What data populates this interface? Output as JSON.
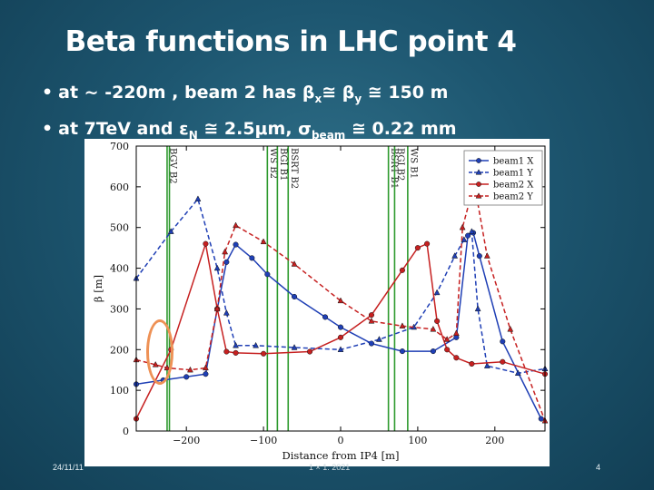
{
  "slide": {
    "title": "Beta functions in LHC point 4",
    "bullets": [
      {
        "prefix": "at  ~  -220m , beam 2 has β",
        "sub1": "x",
        "mid": "≅ β",
        "sub2": "y",
        "suffix": "≅ 150 m"
      },
      {
        "prefix": "at 7TeV and ε",
        "sub1": "N",
        "mid": "≅ 2.5μm, σ",
        "sub2": "beam",
        "suffix": "≅ 0.22 mm"
      }
    ],
    "footer": {
      "date": "24/11/11",
      "center": "1 × 1. 2021",
      "page": "4"
    },
    "highlight_color": "#ee9155"
  },
  "chart_data": {
    "type": "line",
    "xlabel": "Distance from IP4 [m]",
    "ylabel": "β [m]",
    "xlim": [
      -265,
      265
    ],
    "ylim": [
      0,
      700
    ],
    "xticks": [
      -200,
      -100,
      0,
      100,
      200
    ],
    "yticks": [
      0,
      100,
      200,
      300,
      400,
      500,
      600,
      700
    ],
    "grid": false,
    "legend_position": "top-right",
    "vlines": [
      {
        "x": -225,
        "label": "BGV B2"
      },
      {
        "x": -222,
        "label": ""
      },
      {
        "x": -95,
        "label": "WS B2"
      },
      {
        "x": -82,
        "label": "BGI B1"
      },
      {
        "x": -68,
        "label": "BSRT B2"
      },
      {
        "x": 62,
        "label": "BSRT B1"
      },
      {
        "x": 70,
        "label": "BGI B2"
      },
      {
        "x": 87,
        "label": "WS B1"
      }
    ],
    "series": [
      {
        "name": "beam1 X",
        "color": "#1f3fb5",
        "dash": false,
        "marker": "circle",
        "points": [
          [
            -265,
            115
          ],
          [
            -230,
            125
          ],
          [
            -200,
            133
          ],
          [
            -175,
            140
          ],
          [
            -160,
            300
          ],
          [
            -148,
            415
          ],
          [
            -136,
            458
          ],
          [
            -115,
            425
          ],
          [
            -95,
            385
          ],
          [
            -60,
            330
          ],
          [
            -20,
            280
          ],
          [
            0,
            255
          ],
          [
            40,
            215
          ],
          [
            80,
            196
          ],
          [
            120,
            196
          ],
          [
            150,
            230
          ],
          [
            165,
            480
          ],
          [
            172,
            487
          ],
          [
            180,
            430
          ],
          [
            210,
            220
          ],
          [
            260,
            30
          ]
        ]
      },
      {
        "name": "beam1 Y",
        "color": "#1f3fb5",
        "dash": true,
        "marker": "triangle",
        "points": [
          [
            -265,
            375
          ],
          [
            -220,
            490
          ],
          [
            -185,
            570
          ],
          [
            -160,
            400
          ],
          [
            -148,
            290
          ],
          [
            -136,
            210
          ],
          [
            -110,
            210
          ],
          [
            -60,
            205
          ],
          [
            0,
            200
          ],
          [
            50,
            225
          ],
          [
            95,
            255
          ],
          [
            125,
            340
          ],
          [
            148,
            430
          ],
          [
            160,
            470
          ],
          [
            170,
            490
          ],
          [
            178,
            300
          ],
          [
            190,
            160
          ],
          [
            230,
            142
          ],
          [
            265,
            153
          ]
        ]
      },
      {
        "name": "beam2 X",
        "color": "#c62020",
        "dash": false,
        "marker": "circle",
        "points": [
          [
            -265,
            30
          ],
          [
            -220,
            200
          ],
          [
            -175,
            460
          ],
          [
            -160,
            300
          ],
          [
            -148,
            195
          ],
          [
            -136,
            192
          ],
          [
            -100,
            190
          ],
          [
            -40,
            195
          ],
          [
            0,
            230
          ],
          [
            40,
            285
          ],
          [
            80,
            395
          ],
          [
            100,
            450
          ],
          [
            112,
            460
          ],
          [
            125,
            270
          ],
          [
            138,
            200
          ],
          [
            150,
            180
          ],
          [
            170,
            165
          ],
          [
            210,
            170
          ],
          [
            265,
            140
          ]
        ]
      },
      {
        "name": "beam2 Y",
        "color": "#c62020",
        "dash": true,
        "marker": "triangle",
        "points": [
          [
            -265,
            175
          ],
          [
            -240,
            163
          ],
          [
            -225,
            155
          ],
          [
            -195,
            150
          ],
          [
            -175,
            155
          ],
          [
            -160,
            300
          ],
          [
            -150,
            440
          ],
          [
            -136,
            505
          ],
          [
            -100,
            465
          ],
          [
            -60,
            410
          ],
          [
            0,
            320
          ],
          [
            40,
            270
          ],
          [
            80,
            258
          ],
          [
            120,
            250
          ],
          [
            138,
            225
          ],
          [
            150,
            240
          ],
          [
            158,
            500
          ],
          [
            168,
            570
          ],
          [
            175,
            590
          ],
          [
            190,
            430
          ],
          [
            220,
            250
          ],
          [
            265,
            25
          ]
        ]
      }
    ]
  }
}
